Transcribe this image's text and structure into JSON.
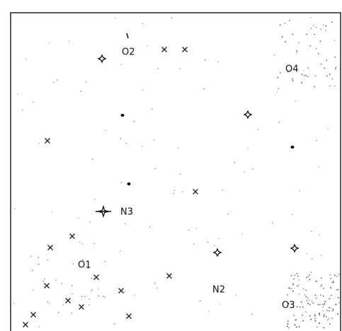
{
  "nodes": [
    {
      "label": "O2"
    },
    {
      "label": "O4"
    },
    {
      "label": "N3"
    },
    {
      "label": "O1"
    },
    {
      "label": "N2"
    },
    {
      "label": "O3"
    }
  ]
}
